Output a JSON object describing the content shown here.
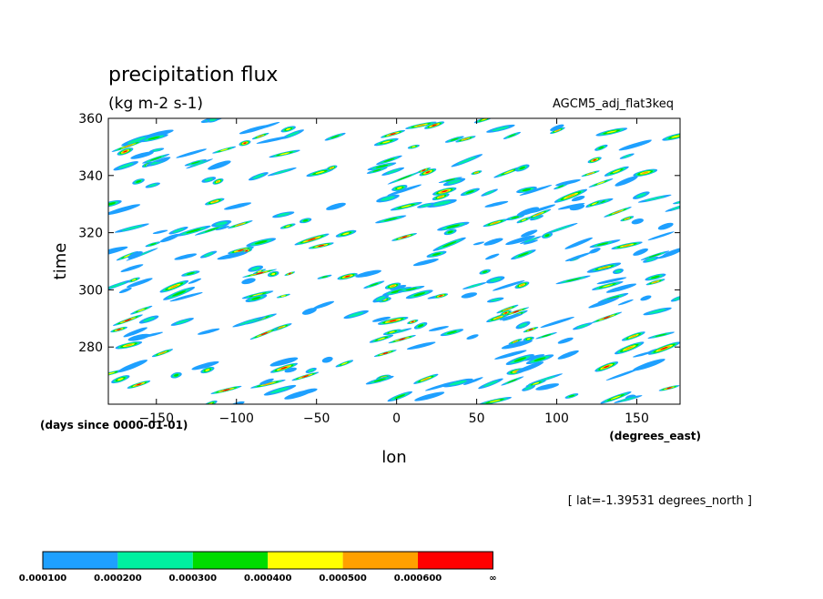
{
  "chart_data": {
    "type": "heatmap",
    "title": "precipitation flux",
    "units": "(kg m-2 s-1)",
    "dataset": "AGCM5_adj_flat3keq",
    "xlabel": "lon",
    "xunits": "(degrees_east)",
    "ylabel": "time",
    "yunits": "(days since 0000-01-01)",
    "annotation": "[ lat=-1.39531 degrees_north ]",
    "xlim": [
      -180,
      177
    ],
    "ylim": [
      260,
      360
    ],
    "xticks": [
      -150,
      -100,
      -50,
      0,
      50,
      100,
      150
    ],
    "xtick_labels": [
      "−150",
      "−100",
      "−50",
      "0",
      "50",
      "100",
      "150"
    ],
    "yticks": [
      280,
      300,
      320,
      340,
      360
    ],
    "ytick_labels": [
      "280",
      "300",
      "320",
      "340",
      "360"
    ],
    "colorbar": {
      "levels": [
        "0.000100",
        "0.000200",
        "0.000300",
        "0.000400",
        "0.000500",
        "0.000600",
        "∞"
      ],
      "colors": [
        "#1ea0ff",
        "#00f0a0",
        "#00dc00",
        "#ffff00",
        "#ffa000",
        "#ff0000"
      ]
    },
    "field": "rain",
    "seed": 7
  }
}
